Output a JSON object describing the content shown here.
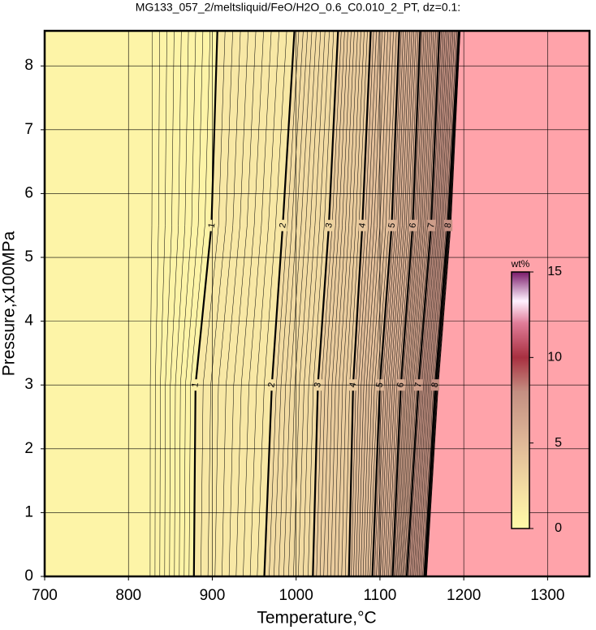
{
  "chart_data": {
    "type": "contour",
    "title": "MG133_057_2/meltsliquid/FeO/H2O_0.6_C0.010_2_PT, dz=0.1:",
    "x_label": "Temperature,°C",
    "y_label": "Pressure,x100MPa",
    "xlim": [
      700,
      1350
    ],
    "xticks": [
      700,
      800,
      900,
      1000,
      1100,
      1200,
      1300
    ],
    "ylim": [
      0,
      8.55
    ],
    "yticks": [
      0,
      1,
      2,
      3,
      4,
      5,
      6,
      7,
      8
    ],
    "grid": true,
    "pressures": [
      0,
      3,
      5.5,
      8.55
    ],
    "contours": [
      {
        "level": 1,
        "x": [
          878,
          880,
          899,
          906
        ]
      },
      {
        "level": 2,
        "x": [
          962,
          971,
          984,
          998
        ]
      },
      {
        "level": 3,
        "x": [
          1020,
          1026,
          1039,
          1050
        ]
      },
      {
        "level": 4,
        "x": [
          1063,
          1068,
          1079,
          1089
        ]
      },
      {
        "level": 5,
        "x": [
          1091,
          1100,
          1114,
          1123
        ]
      },
      {
        "level": 6,
        "x": [
          1115,
          1125,
          1139,
          1148
        ]
      },
      {
        "level": 7,
        "x": [
          1132,
          1146,
          1161,
          1171
        ]
      },
      {
        "level": 8,
        "x": [
          1153,
          1166,
          1181,
          1194
        ]
      }
    ],
    "boundary": {
      "x": [
        1156,
        1170,
        1185,
        1196
      ],
      "color": "#ffa3aa"
    },
    "colorbar": {
      "label": "wt%",
      "lim": [
        0,
        15
      ],
      "ticks": [
        0,
        5,
        10,
        15
      ],
      "colormap": [
        {
          "value": 0,
          "color": "#fffaa8"
        },
        {
          "value": 2,
          "color": "#f6e2a4"
        },
        {
          "value": 5,
          "color": "#dfb898"
        },
        {
          "value": 8,
          "color": "#c48f82"
        },
        {
          "value": 10,
          "color": "#a83040"
        },
        {
          "value": 12,
          "color": "#e07c98"
        },
        {
          "value": 13.3,
          "color": "#fff2ff"
        },
        {
          "value": 15,
          "color": "#7a1a6a"
        }
      ]
    }
  }
}
